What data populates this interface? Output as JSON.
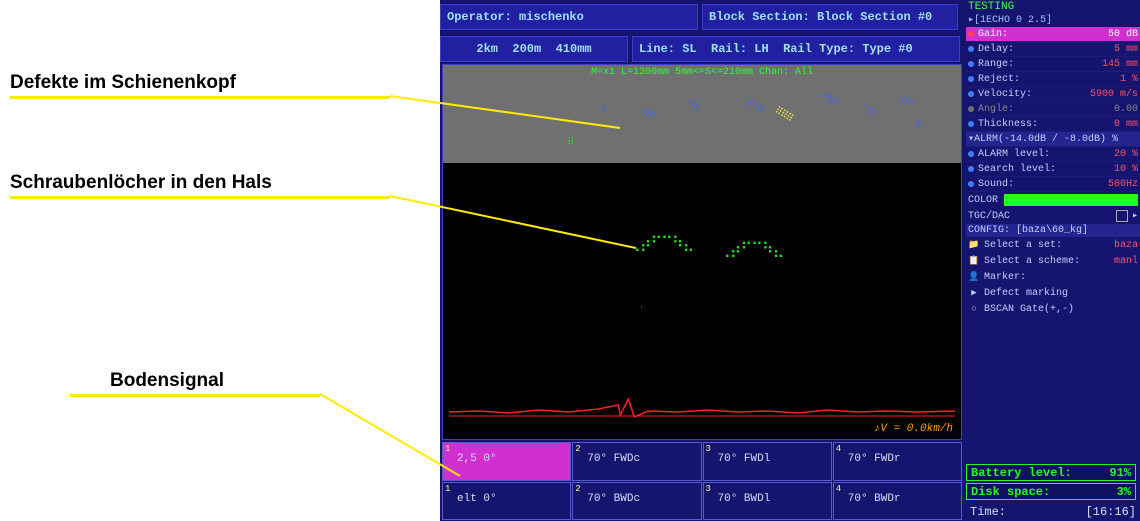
{
  "annotations": {
    "a1": "Defekte im Schienenkopf",
    "a2": "Schraubenlöcher in den Hals",
    "a3": "Bodensignal"
  },
  "header": {
    "operator_label": "Operator:",
    "operator_value": "mischenko",
    "block_label": "Block Section:",
    "block_value": "Block Section #0",
    "dist1": "2km",
    "dist2": "200m",
    "dist3": "410mm",
    "line_label": "Line:",
    "line_value": "SL",
    "rail_label": "Rail:",
    "rail_value": "LH",
    "rail_type_label": "Rail Type:",
    "rail_type_value": "Type #0"
  },
  "bscan": {
    "info": "M=x1  L=1300mm 5mm<=S<=210mm Chan: All",
    "speed": "♪V = 0.0km/h"
  },
  "channels": [
    {
      "num": "1",
      "label": "2,5 0°",
      "active": true
    },
    {
      "num": "2",
      "label": "70° FWDc",
      "active": false
    },
    {
      "num": "3",
      "label": "70° FWDl",
      "active": false
    },
    {
      "num": "4",
      "label": "70° FWDr",
      "active": false
    },
    {
      "num": "1",
      "label": "elt 0°",
      "active": false
    },
    {
      "num": "2",
      "label": "70° BWDc",
      "active": false
    },
    {
      "num": "3",
      "label": "70° BWDl",
      "active": false
    },
    {
      "num": "4",
      "label": "70° BWDr",
      "active": false
    }
  ],
  "side": {
    "title": "TESTING",
    "sub": "▸[1ECHO 0 2.5]",
    "params": [
      {
        "k": "Gain:",
        "v": "50 dB",
        "dot": "#ff4060",
        "hl": true
      },
      {
        "k": "Delay:",
        "v": "5 mm",
        "dot": "#4080ff"
      },
      {
        "k": "Range:",
        "v": "145 mm",
        "dot": "#4080ff"
      },
      {
        "k": "Reject:",
        "v": "1 %",
        "dot": "#4080ff"
      },
      {
        "k": "Velocity:",
        "v": "5900 m/s",
        "dot": "#4080ff"
      },
      {
        "k": "Angle:",
        "v": "0.00",
        "dot": "#707070",
        "gray": true
      },
      {
        "k": "Thickness:",
        "v": "0 mm",
        "dot": "#4080ff"
      }
    ],
    "alarm_header": "▾ALRM(-14.0dB / -8.0dB)         %",
    "alarm_params": [
      {
        "k": "ALARM level:",
        "v": "20 %",
        "dot": "#4080ff"
      },
      {
        "k": "Search level:",
        "v": "10 %",
        "dot": "#4080ff"
      },
      {
        "k": "Sound:",
        "v": "500Hz",
        "dot": "#4080ff"
      }
    ],
    "color_label": "COLOR",
    "tgc_label": "TGC/DAC",
    "config": "CONFIG: [baza\\60_kg]",
    "menus": [
      {
        "ico": "📁",
        "k": "Select a set:",
        "v": "baza"
      },
      {
        "ico": "📋",
        "k": "Select a scheme:",
        "v": "manl"
      },
      {
        "ico": "👤",
        "k": "Marker:",
        "v": ""
      },
      {
        "ico": "▶",
        "k": "Defect marking",
        "v": ""
      },
      {
        "ico": "○",
        "k": "BSCAN Gate(+,-)",
        "v": ""
      }
    ],
    "battery_label": "Battery level:",
    "battery_value": "91%",
    "disk_label": "Disk space:",
    "disk_value": "3%",
    "time_label": "Time:",
    "time_value": "[16:16]"
  },
  "colors": {
    "navy": "#151570",
    "highlight": "#d030d0",
    "green": "#20ff20",
    "yellow": "#ffeb00"
  }
}
